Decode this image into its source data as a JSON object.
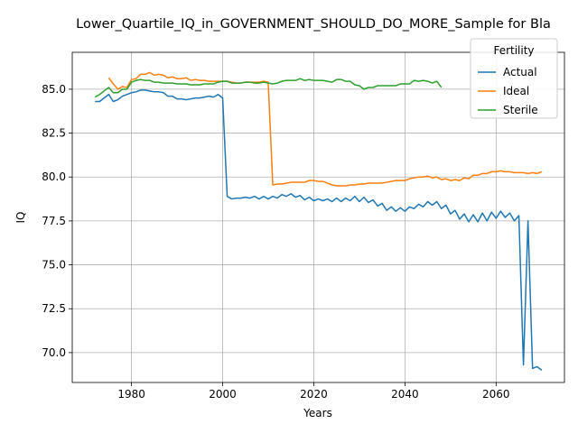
{
  "chart_data": {
    "type": "line",
    "title": "Lower_Quartile_IQ_in_GOVERNMENT_SHOULD_DO_MORE_Sample for Bla",
    "xlabel": "Years",
    "ylabel": "IQ",
    "xlim": [
      1967,
      2075
    ],
    "ylim": [
      68.3,
      87.1
    ],
    "xticks": [
      1980,
      2000,
      2020,
      2040,
      2060
    ],
    "yticks": [
      70.0,
      72.5,
      75.0,
      77.5,
      80.0,
      82.5,
      85.0
    ],
    "ytick_labels": [
      "70.0",
      "72.5",
      "75.0",
      "77.5",
      "80.0",
      "82.5",
      "85.0"
    ],
    "grid": true,
    "legend": {
      "title": "Fertility",
      "position": "top-right"
    },
    "series": [
      {
        "name": "Actual",
        "color": "#1f77b4",
        "x": [
          1972,
          1973,
          1974,
          1975,
          1976,
          1977,
          1978,
          1979,
          1980,
          1981,
          1982,
          1983,
          1984,
          1985,
          1986,
          1987,
          1988,
          1989,
          1990,
          1991,
          1992,
          1993,
          1994,
          1995,
          1996,
          1997,
          1998,
          1999,
          2000,
          2001,
          2002,
          2003,
          2004,
          2005,
          2006,
          2007,
          2008,
          2009,
          2010,
          2011,
          2012,
          2013,
          2014,
          2015,
          2016,
          2017,
          2018,
          2019,
          2020,
          2021,
          2022,
          2023,
          2024,
          2025,
          2026,
          2027,
          2028,
          2029,
          2030,
          2031,
          2032,
          2033,
          2034,
          2035,
          2036,
          2037,
          2038,
          2039,
          2040,
          2041,
          2042,
          2043,
          2044,
          2045,
          2046,
          2047,
          2048,
          2049,
          2050,
          2051,
          2052,
          2053,
          2054,
          2055,
          2056,
          2057,
          2058,
          2059,
          2060,
          2061,
          2062,
          2063,
          2064,
          2065,
          2066,
          2067,
          2068,
          2069,
          2070
        ],
        "values": [
          84.3,
          84.3,
          84.5,
          84.7,
          84.3,
          84.4,
          84.6,
          84.7,
          84.8,
          84.85,
          84.95,
          84.95,
          84.9,
          84.85,
          84.85,
          84.8,
          84.6,
          84.6,
          84.45,
          84.45,
          84.4,
          84.45,
          84.5,
          84.5,
          84.55,
          84.6,
          84.55,
          84.7,
          84.5,
          78.9,
          78.75,
          78.8,
          78.8,
          78.85,
          78.8,
          78.9,
          78.75,
          78.9,
          78.75,
          78.9,
          78.8,
          79.0,
          78.9,
          79.05,
          78.85,
          78.95,
          78.7,
          78.85,
          78.65,
          78.75,
          78.65,
          78.75,
          78.6,
          78.8,
          78.6,
          78.8,
          78.65,
          78.9,
          78.6,
          78.85,
          78.55,
          78.7,
          78.35,
          78.5,
          78.1,
          78.3,
          78.05,
          78.25,
          78.05,
          78.3,
          78.2,
          78.45,
          78.3,
          78.6,
          78.4,
          78.6,
          78.2,
          78.4,
          77.9,
          78.1,
          77.6,
          77.9,
          77.45,
          77.85,
          77.45,
          77.95,
          77.5,
          78.0,
          77.65,
          78.05,
          77.7,
          77.95,
          77.5,
          77.8,
          69.3,
          77.5,
          69.1,
          69.2,
          69.0
        ]
      },
      {
        "name": "Ideal",
        "color": "#ff7f0e",
        "x": [
          1975,
          1976,
          1977,
          1978,
          1979,
          1980,
          1981,
          1982,
          1983,
          1984,
          1985,
          1986,
          1987,
          1988,
          1989,
          1990,
          1991,
          1992,
          1993,
          1994,
          1995,
          1996,
          1997,
          1998,
          1999,
          2000,
          2001,
          2002,
          2003,
          2004,
          2005,
          2006,
          2007,
          2008,
          2009,
          2010,
          2011,
          2012,
          2013,
          2014,
          2015,
          2016,
          2017,
          2018,
          2019,
          2020,
          2021,
          2022,
          2023,
          2024,
          2025,
          2026,
          2027,
          2028,
          2029,
          2030,
          2031,
          2032,
          2033,
          2034,
          2035,
          2036,
          2037,
          2038,
          2039,
          2040,
          2041,
          2042,
          2043,
          2044,
          2045,
          2046,
          2047,
          2048,
          2049,
          2050,
          2051,
          2052,
          2053,
          2054,
          2055,
          2056,
          2057,
          2058,
          2059,
          2060,
          2061,
          2062,
          2063,
          2064,
          2065,
          2066,
          2067,
          2068,
          2069,
          2070
        ],
        "values": [
          85.65,
          85.3,
          85.0,
          85.15,
          85.1,
          85.55,
          85.6,
          85.85,
          85.85,
          85.95,
          85.8,
          85.85,
          85.8,
          85.65,
          85.7,
          85.6,
          85.6,
          85.65,
          85.5,
          85.55,
          85.5,
          85.5,
          85.45,
          85.45,
          85.45,
          85.45,
          85.45,
          85.4,
          85.35,
          85.35,
          85.4,
          85.4,
          85.4,
          85.4,
          85.45,
          85.4,
          79.55,
          79.6,
          79.6,
          79.65,
          79.7,
          79.7,
          79.7,
          79.7,
          79.8,
          79.8,
          79.75,
          79.75,
          79.65,
          79.55,
          79.5,
          79.5,
          79.5,
          79.55,
          79.55,
          79.6,
          79.6,
          79.65,
          79.65,
          79.65,
          79.65,
          79.7,
          79.75,
          79.8,
          79.8,
          79.8,
          79.9,
          79.95,
          80.0,
          80.0,
          80.05,
          79.95,
          80.0,
          79.85,
          79.9,
          79.8,
          79.85,
          79.8,
          79.95,
          79.9,
          80.1,
          80.1,
          80.2,
          80.2,
          80.3,
          80.3,
          80.35,
          80.3,
          80.3,
          80.25,
          80.25,
          80.25,
          80.2,
          80.25,
          80.2,
          80.3
        ]
      },
      {
        "name": "Sterile",
        "color": "#2ca02c",
        "x": [
          1972,
          1973,
          1974,
          1975,
          1976,
          1977,
          1978,
          1979,
          1980,
          1981,
          1982,
          1983,
          1984,
          1985,
          1986,
          1987,
          1988,
          1989,
          1990,
          1991,
          1992,
          1993,
          1994,
          1995,
          1996,
          1997,
          1998,
          1999,
          2000,
          2001,
          2002,
          2003,
          2004,
          2005,
          2006,
          2007,
          2008,
          2009,
          2010,
          2011,
          2012,
          2013,
          2014,
          2015,
          2016,
          2017,
          2018,
          2019,
          2020,
          2021,
          2022,
          2023,
          2024,
          2025,
          2026,
          2027,
          2028,
          2029,
          2030,
          2031,
          2032,
          2033,
          2034,
          2035,
          2036,
          2037,
          2038,
          2039,
          2040,
          2041,
          2042,
          2043,
          2044,
          2045,
          2046,
          2047,
          2048
        ],
        "values": [
          84.55,
          84.7,
          84.9,
          85.1,
          84.8,
          84.8,
          85.0,
          85.0,
          85.4,
          85.5,
          85.55,
          85.5,
          85.5,
          85.4,
          85.4,
          85.35,
          85.35,
          85.35,
          85.3,
          85.3,
          85.3,
          85.25,
          85.25,
          85.25,
          85.3,
          85.3,
          85.3,
          85.4,
          85.45,
          85.45,
          85.35,
          85.35,
          85.35,
          85.4,
          85.4,
          85.35,
          85.35,
          85.4,
          85.35,
          85.3,
          85.35,
          85.45,
          85.5,
          85.5,
          85.5,
          85.6,
          85.5,
          85.55,
          85.5,
          85.5,
          85.5,
          85.45,
          85.4,
          85.55,
          85.55,
          85.45,
          85.45,
          85.25,
          85.2,
          85.0,
          85.1,
          85.1,
          85.2,
          85.2,
          85.2,
          85.2,
          85.2,
          85.3,
          85.3,
          85.3,
          85.5,
          85.45,
          85.5,
          85.45,
          85.35,
          85.45,
          85.1
        ]
      }
    ]
  }
}
